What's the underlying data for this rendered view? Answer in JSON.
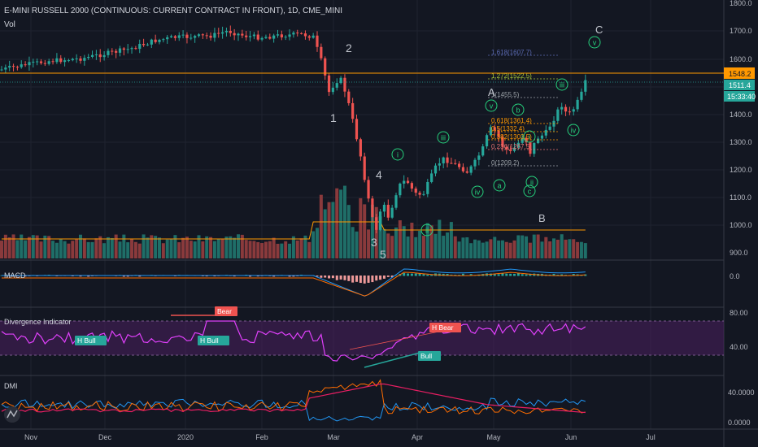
{
  "header": {
    "title": "E-MINI RUSSELL 2000 (CONTINUOUS: CURRENT CONTRACT IN FRONT), 1D, CME_MINI",
    "vol_label": "Vol"
  },
  "price_axis": {
    "ticks": [
      "1800.0",
      "1700.0",
      "1600.0",
      "1500.0",
      "1400.0",
      "1300.0",
      "1200.0",
      "1100.0",
      "1000.0",
      "900.0"
    ],
    "h_line_tag": "1548.2",
    "last_price_tag": "1511.4",
    "countdown_tag": "15:33:40"
  },
  "time_axis": {
    "labels": [
      "Nov",
      "Dec",
      "2020",
      "Feb",
      "Mar",
      "Apr",
      "May",
      "Jun",
      "Jul"
    ]
  },
  "fib": {
    "levels": [
      "1.618(1607.7)",
      "1.272(1522.5)",
      "1(1455.5)",
      "0.618(1361.4)",
      "0.5(1332.4)",
      "0.382(1303.5)",
      "0.236(1267.5)",
      "0(1209.2)"
    ]
  },
  "waves": {
    "impulse": [
      "1",
      "2",
      "3",
      "4",
      "5"
    ],
    "corrective": [
      "A",
      "B",
      "C"
    ],
    "minor": [
      "i",
      "ii",
      "iii",
      "iv",
      "v",
      "a",
      "b",
      "c",
      "i",
      "ii",
      "iii",
      "iv",
      "v"
    ]
  },
  "macd": {
    "label": "MACD",
    "ticks": [
      "0.0"
    ]
  },
  "divergence": {
    "label": "Divergence Indicator",
    "ticks": [
      "80.00",
      "40.00"
    ],
    "tags": [
      "H Bull",
      "H Bull",
      "Bear",
      "H Bear",
      "Bull"
    ]
  },
  "dmi": {
    "label": "DMI",
    "ticks": [
      "40.0000",
      "0.0000"
    ]
  },
  "colors": {
    "background": "#131722",
    "up": "#26a69a",
    "down": "#ef5350",
    "fib_line": "#ffeb3b",
    "h_line": "#ff9800",
    "wave_label": "#26d07c",
    "divergence_line": "#e040fb",
    "macd_line": "#2196f3",
    "signal_line": "#ff6d00",
    "dmi_plus": "#2196f3",
    "dmi_minus": "#ff6d00",
    "adx": "#e91e63"
  },
  "tool_icon": "tradingview-logo-icon"
}
